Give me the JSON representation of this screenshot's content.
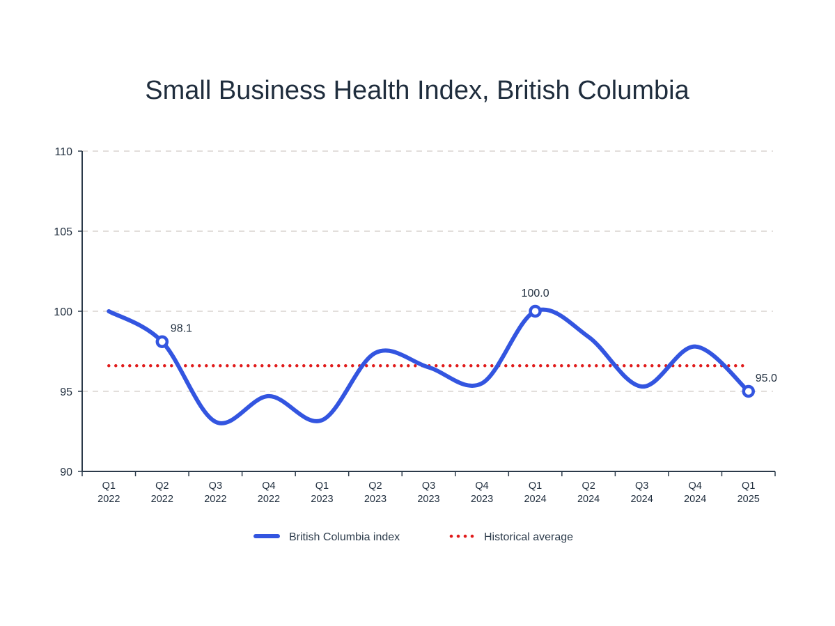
{
  "chart_data": {
    "type": "line",
    "title": "Small Business Health Index, British Columbia",
    "xlabel": "",
    "ylabel": "",
    "ylim": [
      90,
      110
    ],
    "yticks": [
      "90",
      "95",
      "100",
      "105",
      "110"
    ],
    "grid": true,
    "categories": [
      [
        "Q1",
        "2022"
      ],
      [
        "Q2",
        "2022"
      ],
      [
        "Q3",
        "2022"
      ],
      [
        "Q4",
        "2022"
      ],
      [
        "Q1",
        "2023"
      ],
      [
        "Q2",
        "2023"
      ],
      [
        "Q3",
        "2023"
      ],
      [
        "Q4",
        "2023"
      ],
      [
        "Q1",
        "2024"
      ],
      [
        "Q2",
        "2024"
      ],
      [
        "Q3",
        "2024"
      ],
      [
        "Q4",
        "2024"
      ],
      [
        "Q1",
        "2025"
      ]
    ],
    "series": [
      {
        "name": "British Columbia index",
        "color": "#3355e0",
        "values": [
          100.0,
          98.1,
          93.1,
          94.7,
          93.2,
          97.4,
          96.5,
          95.5,
          100.0,
          98.4,
          95.3,
          97.8,
          95.0
        ]
      },
      {
        "name": "Historical average",
        "color": "#e01b1b",
        "style": "dotted",
        "values": [
          96.6,
          96.6,
          96.6,
          96.6,
          96.6,
          96.6,
          96.6,
          96.6,
          96.6,
          96.6,
          96.6,
          96.6,
          96.6
        ]
      }
    ],
    "annotations": [
      {
        "index": 1,
        "label": "98.1"
      },
      {
        "index": 8,
        "label": "100.0"
      },
      {
        "index": 12,
        "label": "95.0"
      }
    ],
    "legend": {
      "placement": "bottom-center",
      "items": [
        "British Columbia index",
        "Historical average"
      ]
    }
  }
}
